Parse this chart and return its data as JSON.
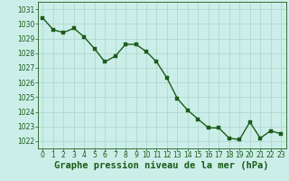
{
  "x": [
    0,
    1,
    2,
    3,
    4,
    5,
    6,
    7,
    8,
    9,
    10,
    11,
    12,
    13,
    14,
    15,
    16,
    17,
    18,
    19,
    20,
    21,
    22,
    23
  ],
  "y": [
    1030.4,
    1029.6,
    1029.4,
    1029.7,
    1029.1,
    1028.3,
    1027.4,
    1027.8,
    1028.6,
    1028.6,
    1028.1,
    1027.4,
    1026.3,
    1024.9,
    1024.1,
    1023.5,
    1022.9,
    1022.9,
    1022.2,
    1022.1,
    1023.3,
    1022.2,
    1022.7,
    1022.5
  ],
  "line_color": "#1a5c1a",
  "marker_color": "#1a5c1a",
  "bg_color": "#cceee8",
  "grid_color": "#aad4cc",
  "xlabel": "Graphe pression niveau de la mer (hPa)",
  "xlabel_color": "#1a5c1a",
  "tick_color": "#1a5c1a",
  "ylim": [
    1021.5,
    1031.5
  ],
  "yticks": [
    1022,
    1023,
    1024,
    1025,
    1026,
    1027,
    1028,
    1029,
    1030,
    1031
  ],
  "xlim": [
    -0.5,
    23.5
  ],
  "xticks": [
    0,
    1,
    2,
    3,
    4,
    5,
    6,
    7,
    8,
    9,
    10,
    11,
    12,
    13,
    14,
    15,
    16,
    17,
    18,
    19,
    20,
    21,
    22,
    23
  ],
  "tick_fontsize": 5.5,
  "xlabel_fontsize": 7.5,
  "line_width": 1.0,
  "marker_size": 2.5
}
